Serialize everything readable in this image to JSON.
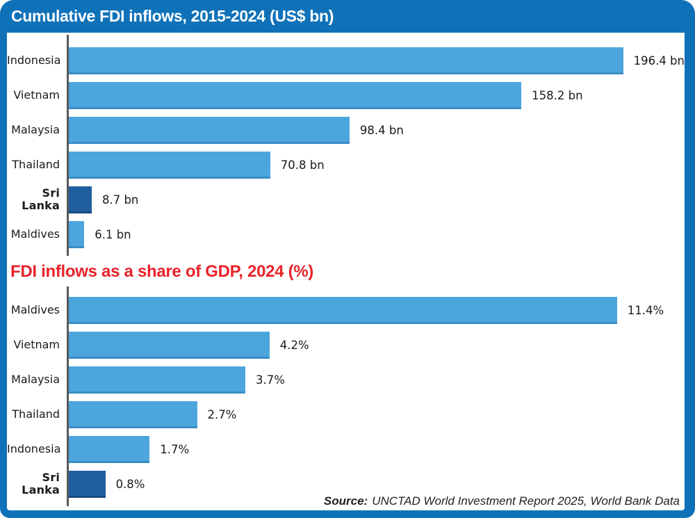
{
  "colors": {
    "frame_blue": "#0f72b9",
    "bar_blue": "#4ca5dd",
    "bar_blue_edge": "#3a8cc4",
    "bar_highlight_blue": "#205f9f",
    "bar_highlight_edge": "#174a80",
    "title_red": "#e8232a",
    "axis_gray": "#58595b",
    "label_text": "#1a1a1a"
  },
  "chart_data": [
    {
      "type": "bar",
      "orientation": "horizontal",
      "title": "Cumulative FDI inflows, 2015-2024 (US$ bn)",
      "title_style": "white-on-blue-banner",
      "unit": "US$ bn",
      "categories": [
        "Indonesia",
        "Vietnam",
        "Malaysia",
        "Thailand",
        "Sri Lanka",
        "Maldives"
      ],
      "values": [
        196.4,
        158.2,
        98.4,
        70.8,
        8.7,
        6.1
      ],
      "value_labels": [
        "196.4 bn",
        "158.2 bn",
        "98.4 bn",
        "70.8 bn",
        "8.7 bn",
        "6.1 bn"
      ],
      "highlight_category": "Sri Lanka",
      "xlim": [
        0,
        215
      ],
      "grid": false,
      "legend": false
    },
    {
      "type": "bar",
      "orientation": "horizontal",
      "title": "FDI inflows as a share of GDP, 2024 (%)",
      "title_style": "red-on-white",
      "unit": "%",
      "categories": [
        "Maldives",
        "Vietnam",
        "Malaysia",
        "Thailand",
        "Indonesia",
        "Sri Lanka"
      ],
      "values": [
        11.4,
        4.2,
        3.7,
        2.7,
        1.7,
        0.8
      ],
      "value_labels": [
        "11.4%",
        "4.2%",
        "3.7%",
        "2.7%",
        "1.7%",
        "0.8%"
      ],
      "highlight_category": "Sri Lanka",
      "xlim": [
        0,
        12.8
      ],
      "grid": false,
      "legend": false
    }
  ],
  "source": {
    "label": "Source:",
    "text": "UNCTAD World Investment Report 2025, World Bank Data"
  }
}
